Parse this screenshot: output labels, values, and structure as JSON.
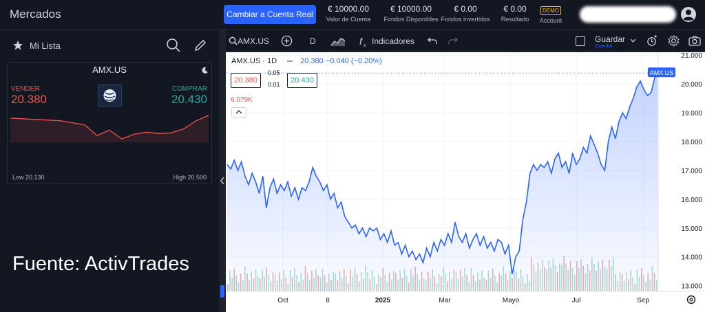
{
  "header": {
    "title": "Mercados",
    "cta_label": "Cambiar a Cuenta Real",
    "stats": [
      {
        "value": "€ 10000.00",
        "label": "Valor de Cuenta"
      },
      {
        "value": "€ 10000.00",
        "label": "Fondos Disponibles"
      },
      {
        "value": "€ 0.00",
        "label": "Fondos invertidos"
      },
      {
        "value": "€ 0.00",
        "label": "Resultado"
      }
    ],
    "account": {
      "badge": "DEMO",
      "label": "Account"
    }
  },
  "sidebar": {
    "title": "Mi Lista",
    "card": {
      "symbol": "AMX.US",
      "sell_label": "VENDER",
      "sell_price": "20.380",
      "buy_label": "COMPRAR",
      "buy_price": "20.430",
      "low": "Low 20.130",
      "high": "High 20.500",
      "sparkline": [
        20.46,
        20.45,
        20.44,
        20.43,
        20.42,
        20.39,
        20.36,
        20.2,
        20.28,
        20.15,
        20.22,
        20.25,
        20.23,
        20.24,
        20.3,
        20.42,
        20.5
      ]
    },
    "watermark": "Fuente: ActivTrades"
  },
  "toolbar": {
    "symbol": "AMX.US",
    "interval": "D",
    "indicators_label": "Indicadores",
    "save_label": "Guardar",
    "save_sub": "Guardar"
  },
  "legend": {
    "title": "AMX.US · 1D",
    "last": "20.380",
    "change": "−0.040 (−0.20%)",
    "sell": "20.380",
    "buy": "20.430",
    "spread_top": "0.05",
    "spread_bottom": "0.01",
    "volume": "6.079K",
    "last_badge": "AMX.US"
  },
  "chart_data": {
    "type": "area",
    "title": "AMX.US · 1D",
    "x_ticks": [
      "Oct",
      "8",
      "2025",
      "Mar",
      "Mayo",
      "Jul",
      "Sep"
    ],
    "y_ticks": [
      13,
      14,
      15,
      16,
      17,
      18,
      19,
      20,
      21
    ],
    "ylim": [
      12.8,
      21.1
    ],
    "series": [
      {
        "values": [
          17.2,
          17.05,
          17.35,
          17.0,
          17.3,
          16.8,
          16.5,
          16.9,
          16.6,
          16.2,
          16.8,
          15.7,
          16.4,
          16.7,
          16.2,
          16.5,
          16.3,
          16.6,
          16.1,
          16.4,
          16.0,
          16.4,
          16.3,
          16.6,
          17.1,
          16.8,
          16.6,
          16.3,
          16.5,
          16.0,
          16.2,
          15.7,
          15.9,
          15.4,
          15.2,
          15.0,
          15.1,
          14.8,
          15.0,
          14.7,
          15.0,
          14.9,
          15.0,
          14.6,
          14.8,
          14.5,
          14.9,
          14.4,
          14.5,
          14.1,
          14.4,
          14.0,
          14.2,
          13.9,
          14.1,
          13.8,
          14.3,
          14.0,
          14.5,
          14.2,
          14.6,
          14.4,
          14.8,
          14.5,
          15.2,
          14.7,
          14.5,
          14.8,
          14.3,
          14.6,
          14.8,
          14.4,
          14.7,
          14.3,
          14.5,
          14.2,
          14.6,
          14.5,
          14.1,
          14.4,
          13.4,
          14.0,
          14.2,
          15.3,
          15.9,
          16.9,
          17.2,
          17.0,
          17.2,
          17.1,
          17.3,
          16.9,
          17.4,
          17.6,
          17.1,
          17.3,
          16.9,
          17.6,
          17.2,
          17.4,
          17.8,
          17.6,
          18.2,
          17.9,
          17.6,
          17.2,
          17.0,
          18.0,
          18.5,
          18.1,
          18.7,
          19.0,
          18.8,
          19.2,
          19.5,
          19.9,
          20.1,
          19.8,
          19.6,
          19.7,
          20.2,
          20.38
        ]
      }
    ],
    "grid": true,
    "volume": true
  }
}
